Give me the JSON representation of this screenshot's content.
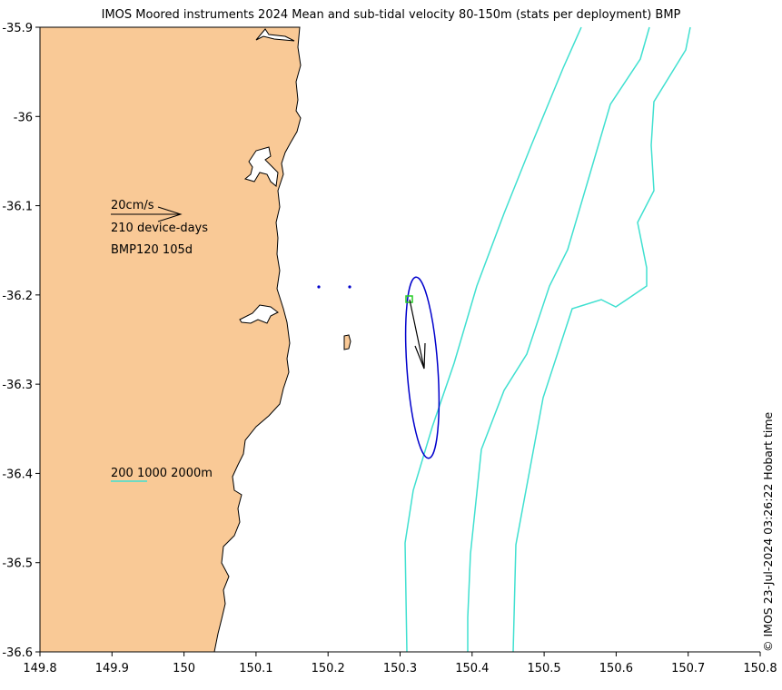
{
  "title": "IMOS Moored instruments 2024 Mean and sub-tidal velocity 80-150m (stats per deployment) BMP",
  "credit": "© IMOS 23-Jul-2024 03:26:22 Hobart time",
  "colors": {
    "land": "#f9c996",
    "coastline": "#000000",
    "isobath": "#40e0d0",
    "ellipse": "#0000cc",
    "mooring_marker": "#22cc22",
    "dots": "#0000cc"
  },
  "axes": {
    "x_ticks": [
      "149.8",
      "149.9",
      "150",
      "150.1",
      "150.2",
      "150.3",
      "150.4",
      "150.5",
      "150.6",
      "150.7",
      "150.8"
    ],
    "y_ticks": [
      "-35.9",
      "-36",
      "-36.1",
      "-36.2",
      "-36.3",
      "-36.4",
      "-36.5",
      "-36.6"
    ],
    "xlim": [
      149.8,
      150.8
    ],
    "ylim": [
      -36.6,
      -35.9
    ]
  },
  "legend": {
    "scale_label": "20cm/s",
    "device_days": "210 device-days",
    "deployment": "BMP120 105d",
    "isobath_labels": "200 1000 2000m"
  },
  "chart_data": {
    "type": "map",
    "mooring": {
      "name": "BMP120",
      "lon": 150.313,
      "lat": -36.207
    },
    "mean_velocity_vector": {
      "u_cm_s": 3.0,
      "v_cm_s": -14.5
    },
    "variance_ellipse": {
      "center_lon": 150.33,
      "center_lat": -36.284,
      "semi_major_lat": 0.101,
      "semi_minor_lon": 0.018,
      "tilt_deg": -4
    },
    "isobaths_m": [
      200,
      1000,
      2000
    ]
  }
}
